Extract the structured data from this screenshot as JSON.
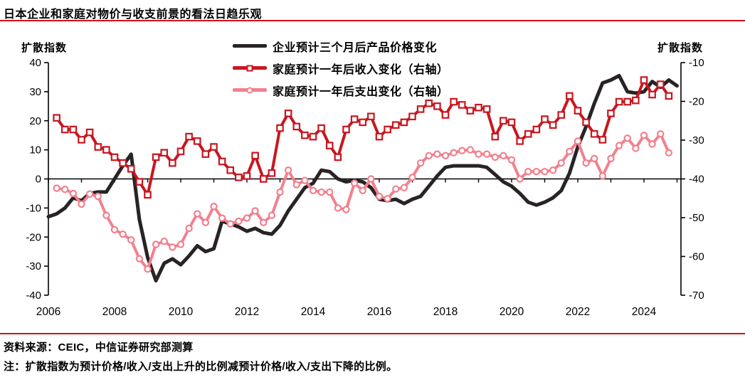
{
  "title": "日本企业和家庭对物价与收支前景的看法日趋乐观",
  "source": "资料来源：CEIC，中信证券研究部测算",
  "note": "注：扩散指数为预计价格/收入/支出上升的比例减预计价格/收入/支出下降的比例。",
  "colors": {
    "accent_rule": "#d40f1a",
    "corporate_series": "#282324",
    "income_series": "#c9161f",
    "spending_series": "#f3808e",
    "text": "#000000",
    "axis": "#000000"
  },
  "chart_data": {
    "type": "line",
    "title": "日本企业和家庭对物价与收支前景的看法日趋乐观",
    "x_start": 2006.0,
    "x_step": 0.25,
    "x_tick_labels": [
      "2006",
      "2008",
      "2010",
      "2012",
      "2014",
      "2016",
      "2018",
      "2020",
      "2022",
      "2024"
    ],
    "x_tick_years": [
      2006,
      2008,
      2010,
      2012,
      2014,
      2016,
      2018,
      2020,
      2022,
      2024
    ],
    "x_year_ticks": [
      2006,
      2007,
      2008,
      2009,
      2010,
      2011,
      2012,
      2013,
      2014,
      2015,
      2016,
      2017,
      2018,
      2019,
      2020,
      2021,
      2022,
      2023,
      2024,
      2025
    ],
    "left_axis": {
      "label": "扩散指数",
      "min": -40,
      "max": 40,
      "tick_labels": [
        "40",
        "30",
        "20",
        "10",
        "0",
        "-10",
        "-20",
        "-30",
        "-40"
      ]
    },
    "right_axis": {
      "label": "扩散指数",
      "min": -70,
      "max": -10,
      "tick_labels": [
        "-10",
        "-20",
        "-30",
        "-40",
        "-50",
        "-60",
        "-70"
      ]
    },
    "grid": "zero-line-only",
    "legend_position": "top-center",
    "series": [
      {
        "name": "企业预计三个月后产品价格变化",
        "axis": "left",
        "color": "#282324",
        "marker": "none",
        "values": [
          -13,
          -12,
          -10,
          -6.5,
          -7.5,
          -5,
          -4.5,
          -4.5,
          0,
          4.5,
          8.5,
          -14,
          -27,
          -35,
          -29,
          -27.5,
          -29.5,
          -26.5,
          -23,
          -25,
          -24,
          -14.5,
          -15.5,
          -16.5,
          -18,
          -17,
          -18.5,
          -19,
          -16,
          -11,
          -7,
          -3,
          -1.5,
          3,
          2.5,
          0,
          -1,
          -0.5,
          -1,
          -3,
          -7,
          -7.5,
          -7,
          -8.5,
          -7,
          -6,
          -2.5,
          1,
          4,
          4.5,
          4.5,
          4.5,
          4.5,
          4,
          1.5,
          -1,
          -2.5,
          -5,
          -8,
          -9,
          -8,
          -6.5,
          -4,
          2,
          11,
          18,
          26,
          33,
          34,
          35.5,
          30,
          29.5,
          30,
          33.5,
          31.5,
          34,
          32
        ]
      },
      {
        "name": "家庭预计一年后收入变化（右轴）",
        "axis": "right",
        "color": "#c9161f",
        "marker": "square",
        "values": [
          null,
          -24.25,
          -27.25,
          -27.25,
          -29.9,
          -28,
          -31.75,
          -32.5,
          -34.4,
          -35.9,
          -37.4,
          -40.75,
          -44.1,
          -34.4,
          -33.25,
          -35.9,
          -32.9,
          -29.1,
          -30.25,
          -33.6,
          -31.75,
          -35.5,
          -37.75,
          -39.6,
          -39.25,
          -34,
          -40,
          -38.5,
          -26.9,
          -23.1,
          -26.5,
          -28.75,
          -29.1,
          -26.9,
          -31.4,
          -34.4,
          -27.25,
          -24.6,
          -25.4,
          -23.9,
          -29.1,
          -27.25,
          -26.1,
          -25.4,
          -23.9,
          -22,
          -20.5,
          -21.25,
          -23.5,
          -20.1,
          -20.9,
          -22.4,
          -21.6,
          -22,
          -29.1,
          -25,
          -25.4,
          -30.25,
          -28.4,
          -27.25,
          -24.6,
          -26.1,
          -23.5,
          -18.6,
          -22.4,
          -25.4,
          -28.4,
          -29.9,
          -23.1,
          -20.1,
          -20.1,
          -19.75,
          -14.5,
          -18.25,
          -15.6,
          -18.6,
          null
        ]
      },
      {
        "name": "家庭预计一年后支出变化（右轴）",
        "axis": "right",
        "color": "#f3808e",
        "marker": "circle",
        "values": [
          null,
          -42.4,
          -42.7,
          -43.75,
          -46.5,
          -43.9,
          -44.5,
          -49.4,
          -53.1,
          -54.25,
          -55.75,
          -60.6,
          -63.25,
          -56.9,
          -56.1,
          -57.6,
          -56.9,
          -52.75,
          -49,
          -51.25,
          -47.1,
          -50.1,
          -51.6,
          -50.9,
          -50.1,
          -48.25,
          -51.25,
          -49.4,
          -43.4,
          -37.75,
          -41.5,
          -40.4,
          -43,
          -43.4,
          -43.4,
          -47.5,
          -47.9,
          -41.1,
          -43,
          -40,
          -44.5,
          -45.1,
          -42.6,
          -42.25,
          -39.6,
          -35.9,
          -34,
          -33.6,
          -34,
          -33.25,
          -32.7,
          -32.5,
          -33.6,
          -33.6,
          -34.4,
          -34,
          -35.1,
          -40,
          -38.1,
          -38.1,
          -38.1,
          -37.75,
          -35.9,
          -32.9,
          -30.25,
          -35.9,
          -34.75,
          -39.25,
          -34.75,
          -31.4,
          -29.5,
          -32.1,
          -28.75,
          -31,
          -28.4,
          -33.25,
          null
        ]
      }
    ]
  }
}
